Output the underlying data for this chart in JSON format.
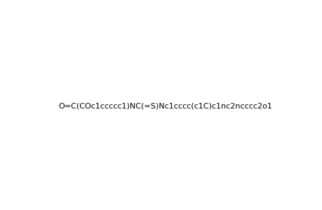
{
  "smiles": "O=C(COc1ccccc1)NC(=S)Nc1cccc(c1C)c1nc2ncccc2o1",
  "title": "",
  "figsize": [
    4.6,
    3.0
  ],
  "dpi": 100,
  "background": "#ffffff"
}
